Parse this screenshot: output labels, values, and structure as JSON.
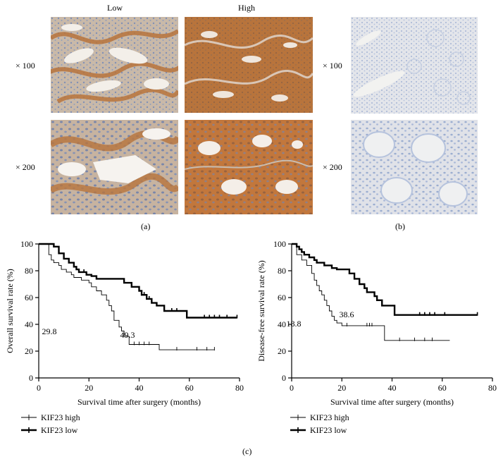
{
  "panel_a": {
    "col_labels": [
      "Low",
      "High"
    ],
    "row_labels": [
      "× 100",
      "× 200"
    ],
    "caption": "(a)"
  },
  "panel_b": {
    "row_labels": [
      "× 100",
      "× 200"
    ],
    "caption": "(b)"
  },
  "panel_c_caption": "(c)",
  "colors": {
    "stain_brown": "#b8743c",
    "hematoxylin_blue": "#8fa3c9",
    "lumen": "#f4f2ef"
  },
  "chart_data": [
    {
      "type": "line",
      "subtype": "kaplan-meier",
      "xlabel": "Survival time after surgery (months)",
      "ylabel": "Overall survival rate (%)",
      "xlim": [
        0,
        80
      ],
      "ylim": [
        0,
        100
      ],
      "xticks": [
        0,
        20,
        40,
        60,
        80
      ],
      "yticks": [
        0,
        20,
        40,
        60,
        80,
        100
      ],
      "annotations": [
        "29.8",
        "49.3"
      ],
      "legend_position": "below",
      "series": [
        {
          "name": "KIF23 high",
          "style": "thin",
          "x": [
            0,
            4,
            5,
            6,
            8,
            9,
            11,
            13,
            14,
            17,
            20,
            21,
            23,
            25,
            27,
            28,
            29,
            30,
            32,
            33,
            34,
            36,
            48,
            70
          ],
          "y": [
            100,
            92,
            88,
            86,
            84,
            81,
            79,
            77,
            75,
            73,
            71,
            68,
            65,
            62,
            58,
            54,
            50,
            43,
            38,
            35,
            31,
            25,
            21,
            21
          ],
          "censored_x": [
            38,
            40,
            42,
            44,
            55,
            63,
            67,
            70
          ]
        },
        {
          "name": "KIF23 low",
          "style": "thick",
          "x": [
            0,
            6,
            8,
            10,
            12,
            14,
            15,
            16,
            18,
            19,
            20,
            21,
            23,
            26,
            34,
            37,
            40,
            41,
            43,
            45,
            47,
            50,
            59,
            79
          ],
          "y": [
            100,
            98,
            93,
            89,
            86,
            83,
            81,
            79,
            79,
            77,
            77,
            76,
            74,
            74,
            71,
            68,
            65,
            62,
            59,
            56,
            54,
            50,
            45,
            45
          ],
          "censored_x": [
            16,
            18,
            40,
            42,
            44,
            53,
            55,
            66,
            68,
            70,
            72,
            75,
            79
          ]
        }
      ]
    },
    {
      "type": "line",
      "subtype": "kaplan-meier",
      "xlabel": "Survival time after surgery (months)",
      "ylabel": "Disease-free survival rate (%)",
      "xlim": [
        0,
        80
      ],
      "ylim": [
        0,
        100
      ],
      "xticks": [
        0,
        20,
        40,
        60,
        80
      ],
      "yticks": [
        0,
        20,
        40,
        60,
        80,
        100
      ],
      "annotations": [
        "18.8",
        "38.6"
      ],
      "legend_position": "below",
      "series": [
        {
          "name": "KIF23 high",
          "style": "thin",
          "x": [
            0,
            2,
            4,
            6,
            8,
            9,
            10,
            11,
            12,
            13,
            14,
            15,
            16,
            17,
            18,
            20,
            37,
            63
          ],
          "y": [
            100,
            92,
            88,
            84,
            78,
            73,
            69,
            65,
            62,
            58,
            54,
            50,
            46,
            43,
            41,
            39,
            28,
            28
          ],
          "censored_x": [
            22,
            30,
            31,
            32,
            43,
            49,
            53,
            56
          ]
        },
        {
          "name": "KIF23 low",
          "style": "thick",
          "x": [
            0,
            2,
            3,
            4,
            5,
            7,
            9,
            10,
            13,
            16,
            18,
            23,
            25,
            27,
            29,
            30,
            33,
            34,
            36,
            41,
            74
          ],
          "y": [
            100,
            98,
            96,
            94,
            92,
            90,
            88,
            86,
            84,
            82,
            81,
            78,
            74,
            70,
            67,
            64,
            61,
            58,
            54,
            47,
            47
          ],
          "censored_x": [
            29,
            33,
            51,
            53,
            55,
            57,
            61,
            74
          ]
        }
      ]
    }
  ]
}
